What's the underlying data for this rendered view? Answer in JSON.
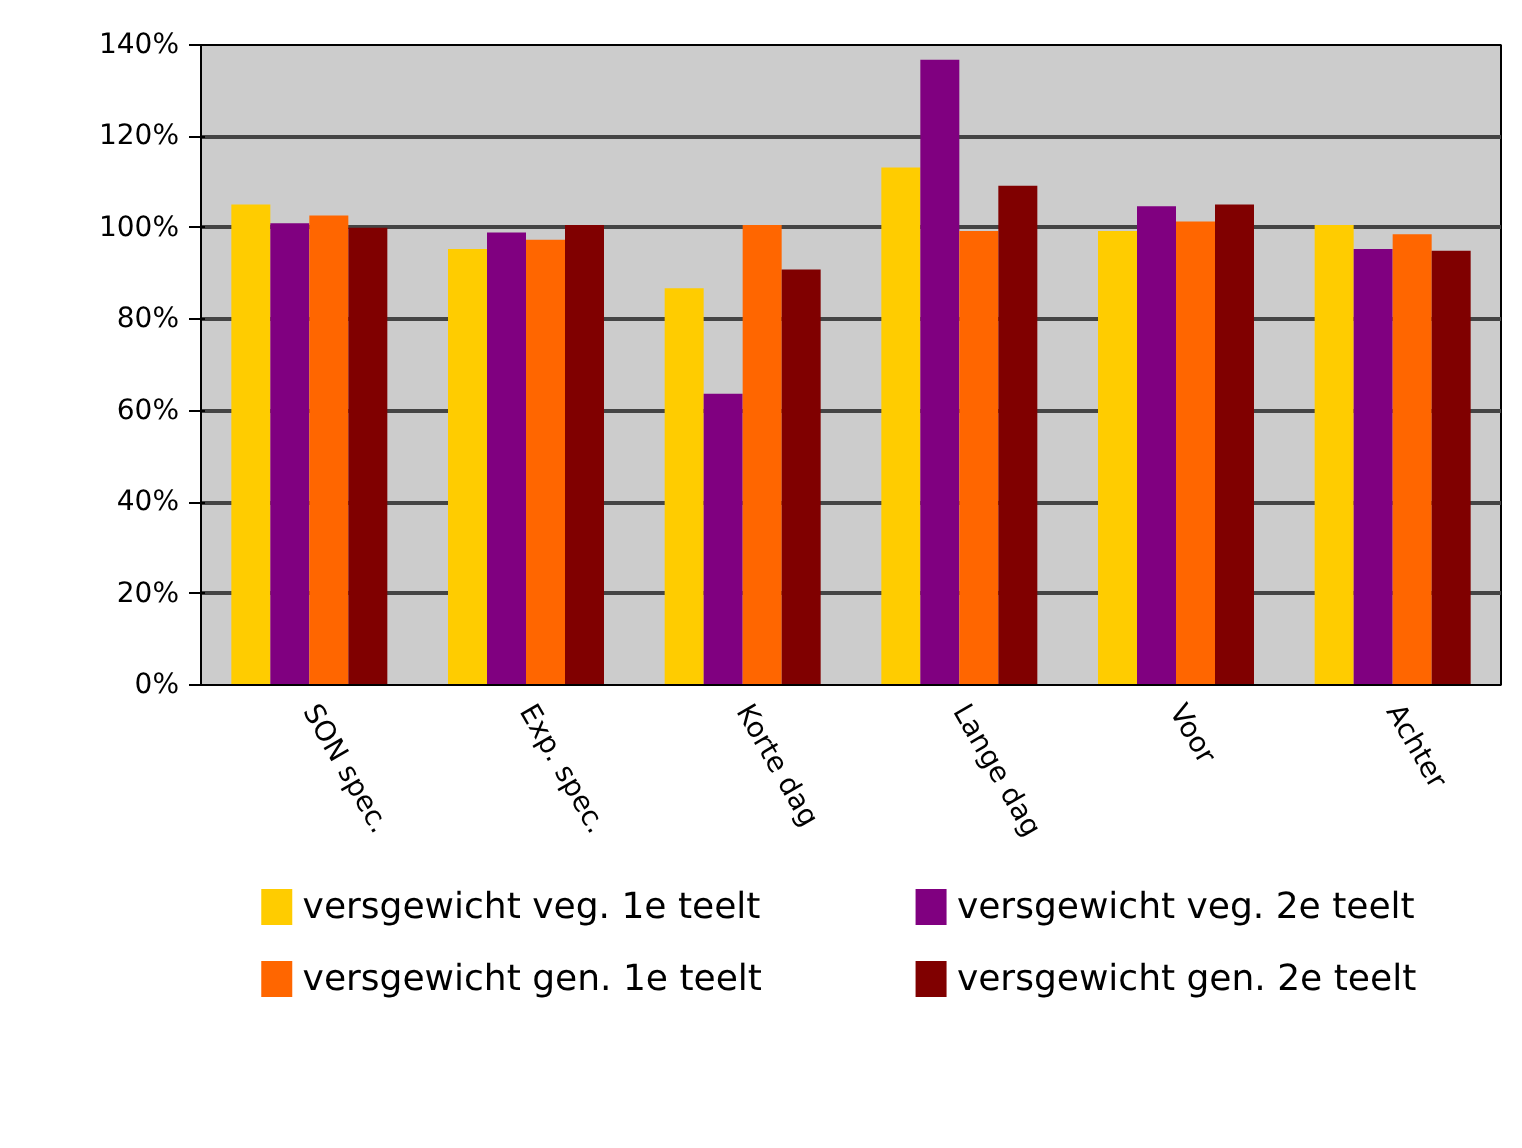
{
  "chart_data": {
    "type": "bar",
    "categories": [
      "SON spec.",
      "Exp. spec.",
      "Korte dag",
      "Lange dag",
      "Voor",
      "Achter"
    ],
    "series": [
      {
        "name": "versgewicht veg. 1e teelt",
        "color": "#ffcc00",
        "values": [
          105.1,
          95.4,
          86.8,
          113.2,
          99.3,
          100.6
        ]
      },
      {
        "name": "versgewicht veg. 2e teelt",
        "color": "#800080",
        "values": [
          101.0,
          99.0,
          63.7,
          136.8,
          104.7,
          95.4
        ]
      },
      {
        "name": "versgewicht gen. 1e teelt",
        "color": "#ff6600",
        "values": [
          102.7,
          97.4,
          100.6,
          99.3,
          101.4,
          98.6
        ]
      },
      {
        "name": "versgewicht gen. 2e teelt",
        "color": "#800000",
        "values": [
          100.0,
          100.6,
          90.9,
          109.2,
          105.1,
          95.0
        ]
      }
    ],
    "ylim": [
      0,
      140
    ],
    "yticks": [
      {
        "value": 0,
        "label": "0%"
      },
      {
        "value": 20,
        "label": "20%"
      },
      {
        "value": 40,
        "label": "40%"
      },
      {
        "value": 60,
        "label": "60%"
      },
      {
        "value": 80,
        "label": "80%"
      },
      {
        "value": 100,
        "label": "100%"
      },
      {
        "value": 120,
        "label": "120%"
      },
      {
        "value": 140,
        "label": "140%"
      }
    ],
    "grid": "y",
    "legend": "bottom"
  }
}
